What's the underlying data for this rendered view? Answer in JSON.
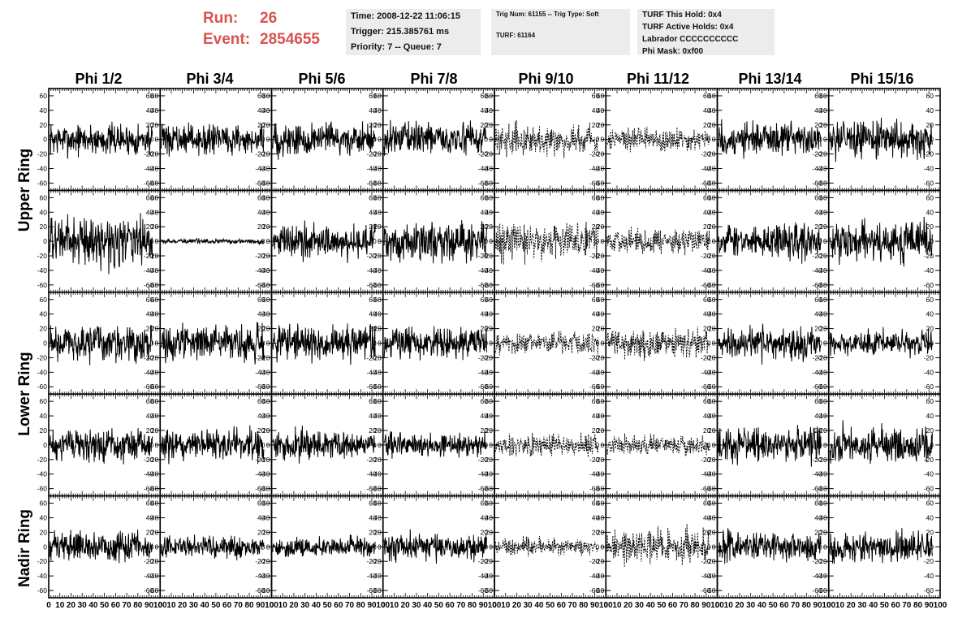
{
  "header": {
    "run_label": "Run:",
    "run_value": "26",
    "event_label": "Event:",
    "event_value": "2854655"
  },
  "info_time": {
    "time": "Time: 2008-12-22 11:06:15",
    "trigger": "Trigger: 215.385761 ms",
    "priority": "Priority: 7 -- Queue: 7"
  },
  "info_trig": {
    "trig": "Trig Num: 61155 -- Trig Type: Soft",
    "turf": "TURF: 61164"
  },
  "info_turf": {
    "this_hold": "TURF This Hold: 0x4",
    "active_holds": "TURF Active Holds: 0x4",
    "labrador": "Labrador CCCCCCCCCC",
    "phi_mask": "Phi Mask: 0xf00"
  },
  "colors": {
    "run_text": "#d9534f",
    "info_bg": "#ececec",
    "trace": "#000000"
  },
  "chart_data": {
    "type": "line",
    "grid": "off",
    "columns": [
      "Phi 1/2",
      "Phi 3/4",
      "Phi 5/6",
      "Phi 7/8",
      "Phi 9/10",
      "Phi 11/12",
      "Phi 13/14",
      "Phi 15/16"
    ],
    "rings": [
      {
        "label": "Upper Ring",
        "rows": [
          0,
          1
        ]
      },
      {
        "label": "Lower Ring",
        "rows": [
          2,
          3
        ]
      },
      {
        "label": "Nadir Ring",
        "rows": [
          4
        ]
      }
    ],
    "xlim": [
      0,
      100
    ],
    "ylim": [
      -70,
      70
    ],
    "x_ticks": [
      "0",
      "10",
      "20",
      "30",
      "40",
      "50",
      "60",
      "70",
      "80",
      "90",
      "100"
    ],
    "y_ticks": [
      "60",
      "40",
      "20",
      "0",
      "-20",
      "-40",
      "-60"
    ],
    "y_tick_values": [
      60,
      40,
      20,
      0,
      -20,
      -40,
      -60
    ],
    "dashed_columns": [
      4,
      5
    ],
    "trace_amplitudes": [
      [
        13,
        12,
        14,
        13,
        12,
        10,
        14,
        15
      ],
      [
        20,
        2,
        14,
        16,
        15,
        10,
        14,
        16
      ],
      [
        15,
        14,
        14,
        13,
        9,
        12,
        13,
        10
      ],
      [
        13,
        13,
        12,
        10,
        9,
        8,
        14,
        15
      ],
      [
        12,
        9,
        8,
        12,
        7,
        14,
        12,
        12
      ]
    ],
    "trace_range_x": [
      1,
      93
    ],
    "samples_per_trace": 260
  }
}
